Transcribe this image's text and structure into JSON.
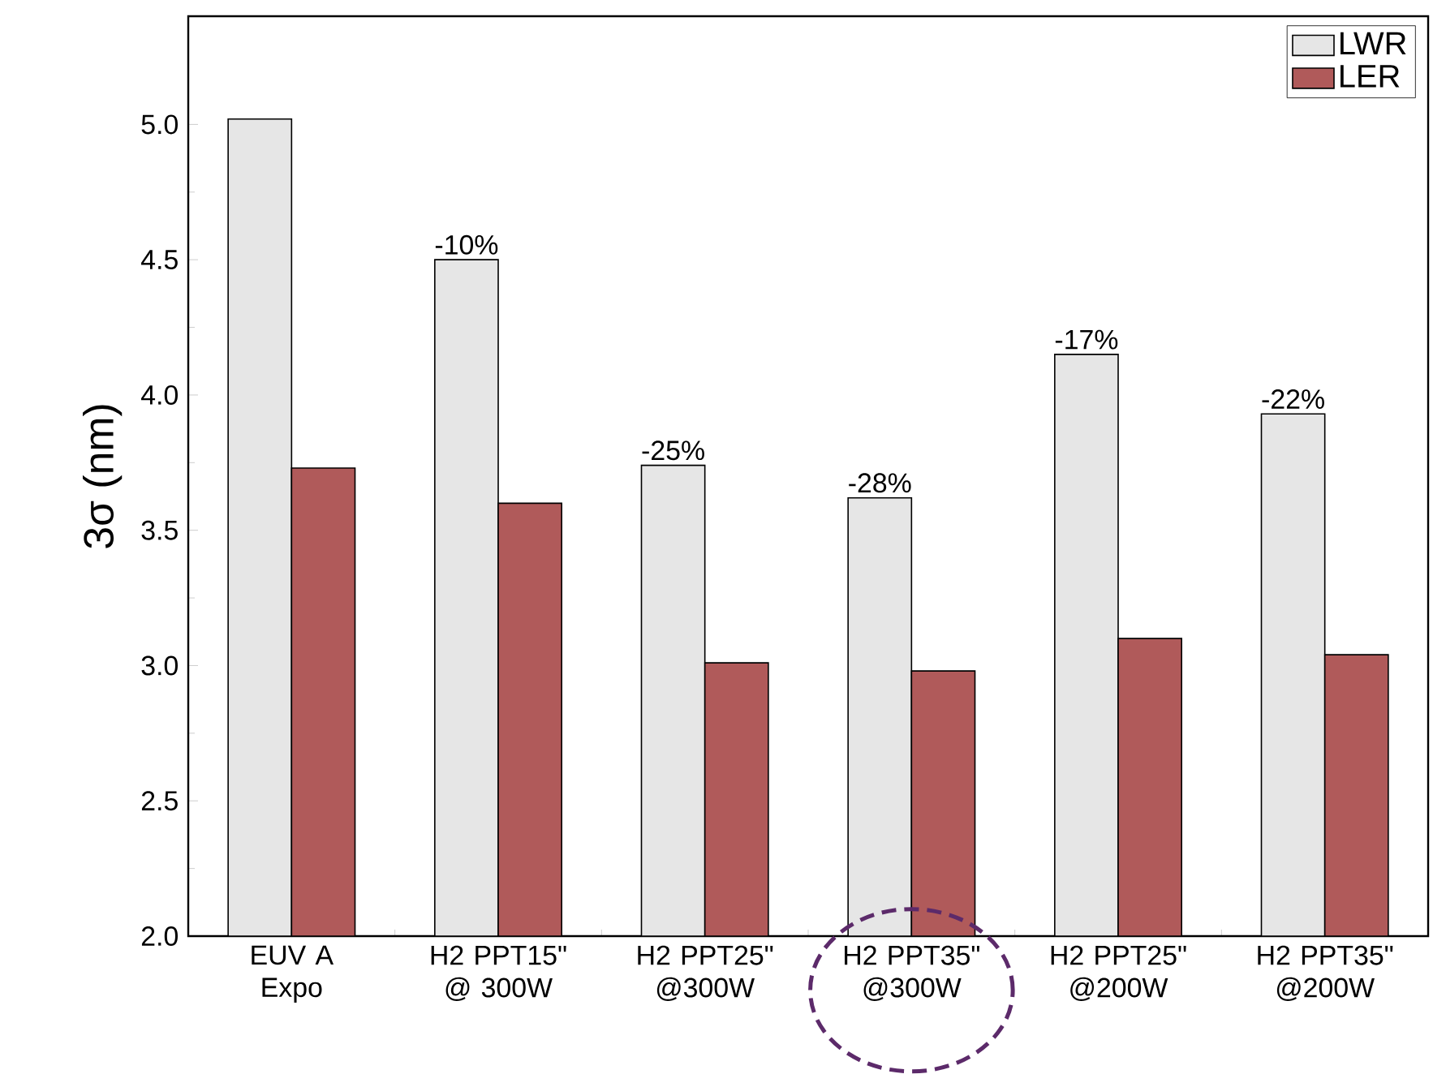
{
  "chart_data": {
    "type": "bar",
    "ylabel": "3σ (nm)",
    "categories": [
      "EUV A Expo",
      "H2 PPT15\" @ 300W",
      "H2 PPT25\" @300W",
      "H2 PPT35\" @300W",
      "H2 PPT25\" @200W",
      "H2 PPT35\" @200W"
    ],
    "series": [
      {
        "name": "LWR",
        "color": "#e6e6e6",
        "values": [
          5.02,
          4.5,
          3.74,
          3.62,
          4.15,
          3.93
        ]
      },
      {
        "name": "LER",
        "color": "#b05a5a",
        "values": [
          3.73,
          3.6,
          3.01,
          2.98,
          3.1,
          3.04
        ]
      }
    ],
    "annotations": [
      {
        "text": "-10%",
        "x": "H2 PPT15\" @ 300W",
        "y": 4.5
      },
      {
        "text": "-25%",
        "x": "H2 PPT25\" @300W",
        "y": 3.74
      },
      {
        "text": "-28%",
        "x": "H2 PPT35\" @300W",
        "y": 3.62
      },
      {
        "text": "-17%",
        "x": "H2 PPT25\" @200W",
        "y": 4.15
      },
      {
        "text": "-22%",
        "x": "H2 PPT35\" @200W",
        "y": 3.93
      }
    ],
    "ylim": [
      2.0,
      5.4
    ],
    "yticks": [
      {
        "value": 2.0,
        "label": "2.0"
      },
      {
        "value": 2.5,
        "label": "2.5"
      },
      {
        "value": 3.0,
        "label": "3.0"
      },
      {
        "value": 3.5,
        "label": "3.5"
      },
      {
        "value": 4.0,
        "label": "4.0"
      },
      {
        "value": 4.5,
        "label": "4.5"
      },
      {
        "value": 5.0,
        "label": "5.0"
      }
    ],
    "legend": "top right"
  }
}
